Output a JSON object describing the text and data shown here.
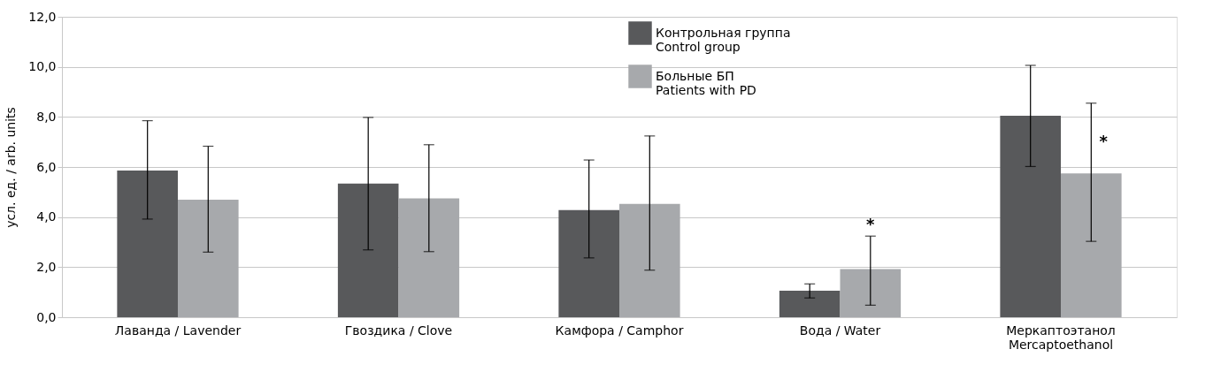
{
  "chart_data": {
    "type": "bar",
    "ylabel": "усл. ед. / arb. units",
    "categories": [
      "Лаванда / Lavender",
      "Гвоздика / Clove",
      "Камфора / Camphor",
      "Вода / Water",
      "Меркаптоэтанол\nMercaptoethanol"
    ],
    "series": [
      {
        "name": "Контрольная группа\nControl group",
        "color": "#58595b",
        "values": [
          5.86,
          5.34,
          4.28,
          1.06,
          8.05
        ],
        "errors": [
          [
            3.92,
            7.85
          ],
          [
            2.69,
            7.98
          ],
          [
            2.37,
            6.28
          ],
          [
            0.77,
            1.33
          ],
          [
            6.02,
            10.06
          ]
        ]
      },
      {
        "name": "Больные БП\nPatients with PD",
        "color": "#a7a9ac",
        "values": [
          4.69,
          4.75,
          4.53,
          1.92,
          5.74
        ],
        "errors": [
          [
            2.6,
            6.83
          ],
          [
            2.62,
            6.89
          ],
          [
            1.88,
            7.24
          ],
          [
            0.48,
            3.24
          ],
          [
            3.03,
            8.55
          ]
        ]
      }
    ],
    "ylim": [
      0,
      12
    ],
    "yticks": [
      {
        "value": 0,
        "label": "0,0"
      },
      {
        "value": 2,
        "label": "2,0"
      },
      {
        "value": 4,
        "label": "4,0"
      },
      {
        "value": 6,
        "label": "6,0"
      },
      {
        "value": 8,
        "label": "8,0"
      },
      {
        "value": 10,
        "label": "10,0"
      },
      {
        "value": 12,
        "label": "12,0"
      }
    ],
    "grid": "y",
    "legend": "top",
    "annotations": [
      {
        "text": "*",
        "x": "Вода / Water",
        "y": 1.92
      },
      {
        "text": "*",
        "x": "Меркаптоэтанол\nMercaptoethanol",
        "y": 7.0
      }
    ]
  }
}
